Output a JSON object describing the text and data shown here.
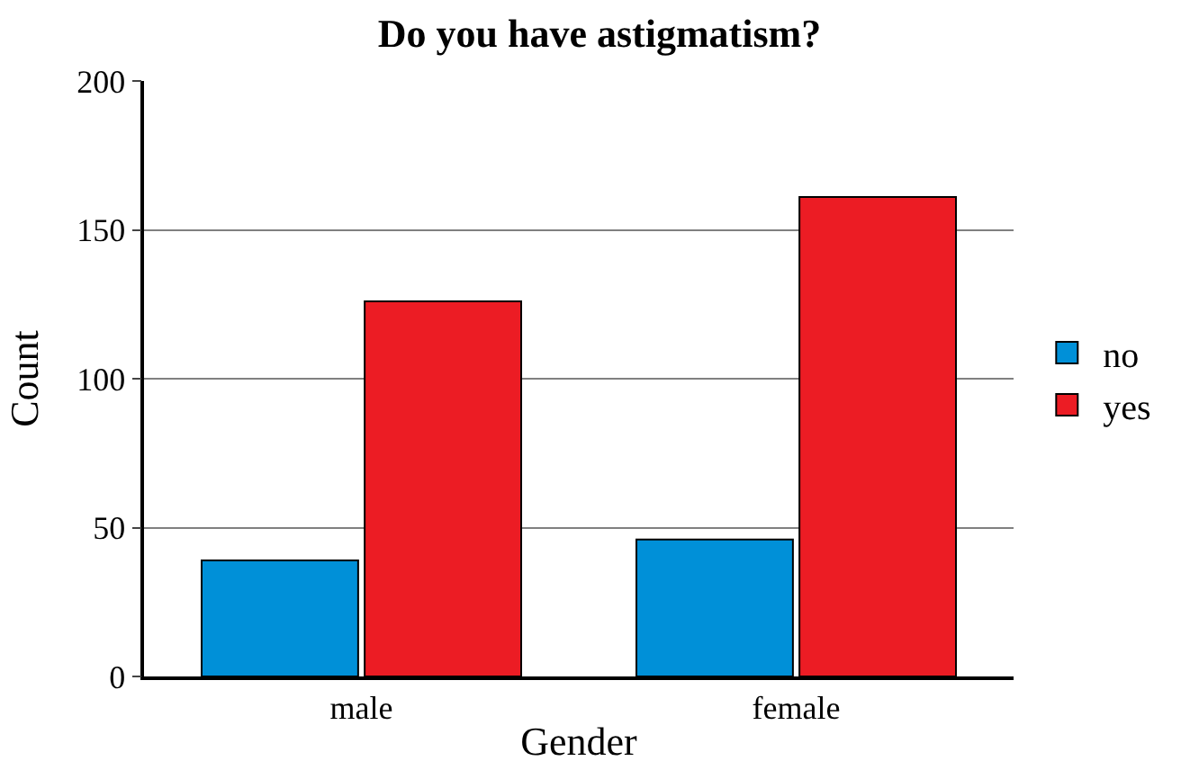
{
  "chart_data": {
    "type": "bar",
    "title": "Do you have astigmatism?",
    "xlabel": "Gender",
    "ylabel": "Count",
    "categories": [
      "male",
      "female"
    ],
    "series": [
      {
        "name": "no",
        "color": "#0090d8",
        "values": [
          39,
          46
        ]
      },
      {
        "name": "yes",
        "color": "#ec1c24",
        "values": [
          126,
          161
        ]
      }
    ],
    "ylim": [
      0,
      200
    ],
    "yticks": [
      0,
      50,
      100,
      150,
      200
    ],
    "grid": "y",
    "legend": "right"
  }
}
